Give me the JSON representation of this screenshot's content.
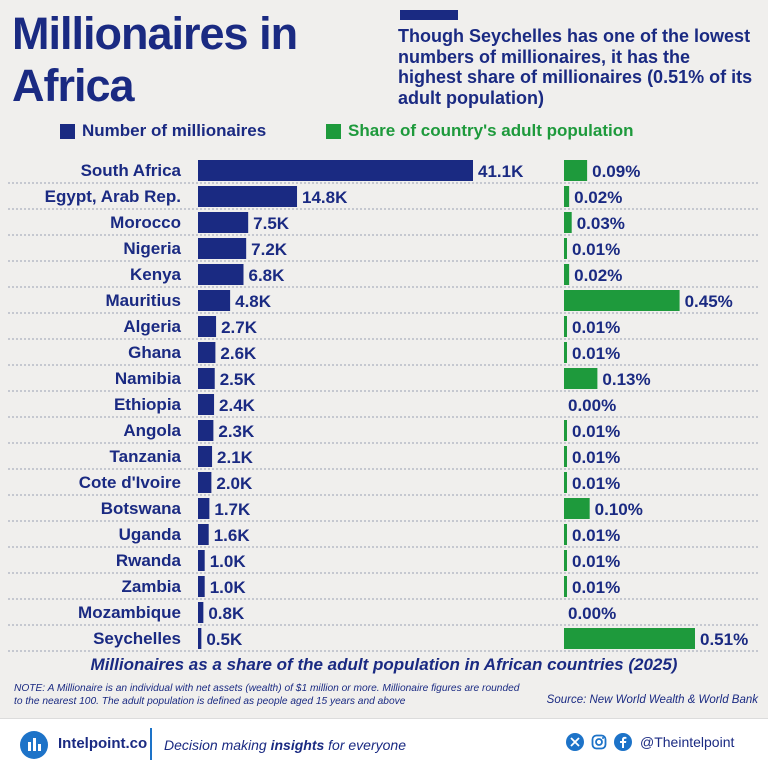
{
  "title": "Millionaires in Africa",
  "subtitle": "Though Seychelles has one of the lowest numbers of millionaires, it has the highest share of millionaires (0.51% of its adult population)",
  "legend": [
    {
      "label": "Number of millionaires",
      "color": "#1a2a82"
    },
    {
      "label": "Share of country's adult population",
      "color": "#1e9a3c"
    }
  ],
  "caption": "Millionaires as a share of the adult population in African countries (2025)",
  "note": "NOTE: A Millionaire is an individual with net assets (wealth) of $1 million or more. Millionaire figures are rounded to the nearest 100. The adult population is defined as people aged 15 years and above",
  "source": "Source: New World Wealth & World Bank",
  "footer": {
    "brand": "Intelpoint.co",
    "tagline_pre": "Decision making ",
    "tagline_bold": "insights",
    "tagline_post": " for everyone",
    "handle": "@Theintelpoint",
    "icons": [
      "x-icon",
      "instagram-icon",
      "facebook-icon"
    ]
  },
  "chart_data": {
    "type": "bar",
    "orientation": "horizontal",
    "categories": [
      "South Africa",
      "Egypt, Arab Rep.",
      "Morocco",
      "Nigeria",
      "Kenya",
      "Mauritius",
      "Algeria",
      "Ghana",
      "Namibia",
      "Ethiopia",
      "Angola",
      "Tanzania",
      "Cote d'Ivoire",
      "Botswana",
      "Uganda",
      "Rwanda",
      "Zambia",
      "Mozambique",
      "Seychelles"
    ],
    "series": [
      {
        "name": "Number of millionaires",
        "color": "#1a2a82",
        "values": [
          41100,
          14800,
          7500,
          7200,
          6800,
          4800,
          2700,
          2600,
          2500,
          2400,
          2300,
          2100,
          2000,
          1700,
          1600,
          1000,
          1000,
          800,
          500
        ],
        "labels": [
          "41.1K",
          "14.8K",
          "7.5K",
          "7.2K",
          "6.8K",
          "4.8K",
          "2.7K",
          "2.6K",
          "2.5K",
          "2.4K",
          "2.3K",
          "2.1K",
          "2.0K",
          "1.7K",
          "1.6K",
          "1.0K",
          "1.0K",
          "0.8K",
          "0.5K"
        ]
      },
      {
        "name": "Share of country's adult population",
        "color": "#1e9a3c",
        "values": [
          0.09,
          0.02,
          0.03,
          0.01,
          0.02,
          0.45,
          0.01,
          0.01,
          0.13,
          0.0,
          0.01,
          0.01,
          0.01,
          0.1,
          0.01,
          0.01,
          0.01,
          0.0,
          0.51
        ],
        "labels": [
          "0.09%",
          "0.02%",
          "0.03%",
          "0.01%",
          "0.02%",
          "0.45%",
          "0.01%",
          "0.01%",
          "0.13%",
          "0.00%",
          "0.01%",
          "0.01%",
          "0.01%",
          "0.10%",
          "0.01%",
          "0.01%",
          "0.01%",
          "0.00%",
          "0.51%"
        ]
      }
    ],
    "grid": "dotted row separators"
  }
}
